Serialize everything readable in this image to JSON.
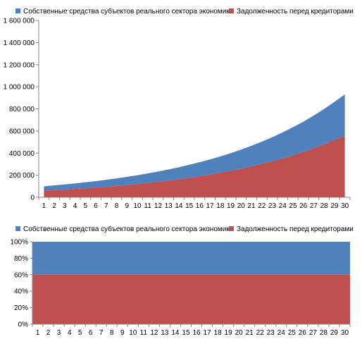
{
  "chart_data": [
    {
      "type": "area",
      "stacked": true,
      "x": [
        1,
        2,
        3,
        4,
        5,
        6,
        7,
        8,
        9,
        10,
        11,
        12,
        13,
        14,
        15,
        16,
        17,
        18,
        19,
        20,
        21,
        22,
        23,
        24,
        25,
        26,
        27,
        28,
        29,
        30
      ],
      "series": [
        {
          "name": "Собственные средства субъектов реального сектора экономики",
          "color": "#4F81BD",
          "values": [
            40000,
            43200,
            46656,
            50388,
            54419,
            58773,
            63475,
            68553,
            74037,
            79960,
            86357,
            93266,
            100727,
            108785,
            117488,
            126887,
            137037,
            148000,
            159840,
            172628,
            186438,
            201353,
            217461,
            234858,
            253647,
            273939,
            295854,
            319522,
            345084,
            372690
          ]
        },
        {
          "name": "Задолженность перед кредиторами",
          "color": "#C0504D",
          "values": [
            60000,
            64800,
            69984,
            75583,
            81629,
            88160,
            95212,
            102829,
            111056,
            119940,
            129535,
            139898,
            151090,
            163177,
            176232,
            190330,
            205556,
            222000,
            239760,
            258941,
            279656,
            302029,
            326191,
            352286,
            380469,
            410906,
            443780,
            479283,
            517625,
            559035
          ]
        }
      ],
      "ylim": [
        0,
        1600000
      ],
      "yticks": [
        "0",
        "200 000",
        "400 000",
        "600 000",
        "800 000",
        "1 000 000",
        "1 200 000",
        "1 400 000",
        "1 600 000"
      ],
      "legend": "top",
      "grid": false
    },
    {
      "type": "area",
      "stacked": true,
      "normalized": true,
      "x": [
        1,
        2,
        3,
        4,
        5,
        6,
        7,
        8,
        9,
        10,
        11,
        12,
        13,
        14,
        15,
        16,
        17,
        18,
        19,
        20,
        21,
        22,
        23,
        24,
        25,
        26,
        27,
        28,
        29,
        30
      ],
      "series": [
        {
          "name": "Собственные средства субъектов реального сектора экономики",
          "color": "#4F81BD",
          "values": [
            40,
            40,
            40,
            40,
            40,
            40,
            40,
            40,
            40,
            40,
            40,
            40,
            40,
            40,
            40,
            40,
            40,
            40,
            40,
            40,
            40,
            40,
            40,
            40,
            40,
            40,
            40,
            40,
            40,
            40
          ]
        },
        {
          "name": "Задолженность перед кредиторами",
          "color": "#C0504D",
          "values": [
            60,
            60,
            60,
            60,
            60,
            60,
            60,
            60,
            60,
            60,
            60,
            60,
            60,
            60,
            60,
            60,
            60,
            60,
            60,
            60,
            60,
            60,
            60,
            60,
            60,
            60,
            60,
            60,
            60,
            60
          ]
        }
      ],
      "ylim": [
        0,
        100
      ],
      "yticks": [
        "0%",
        "20%",
        "40%",
        "60%",
        "80%",
        "100%"
      ],
      "legend": "top",
      "grid": false
    }
  ]
}
